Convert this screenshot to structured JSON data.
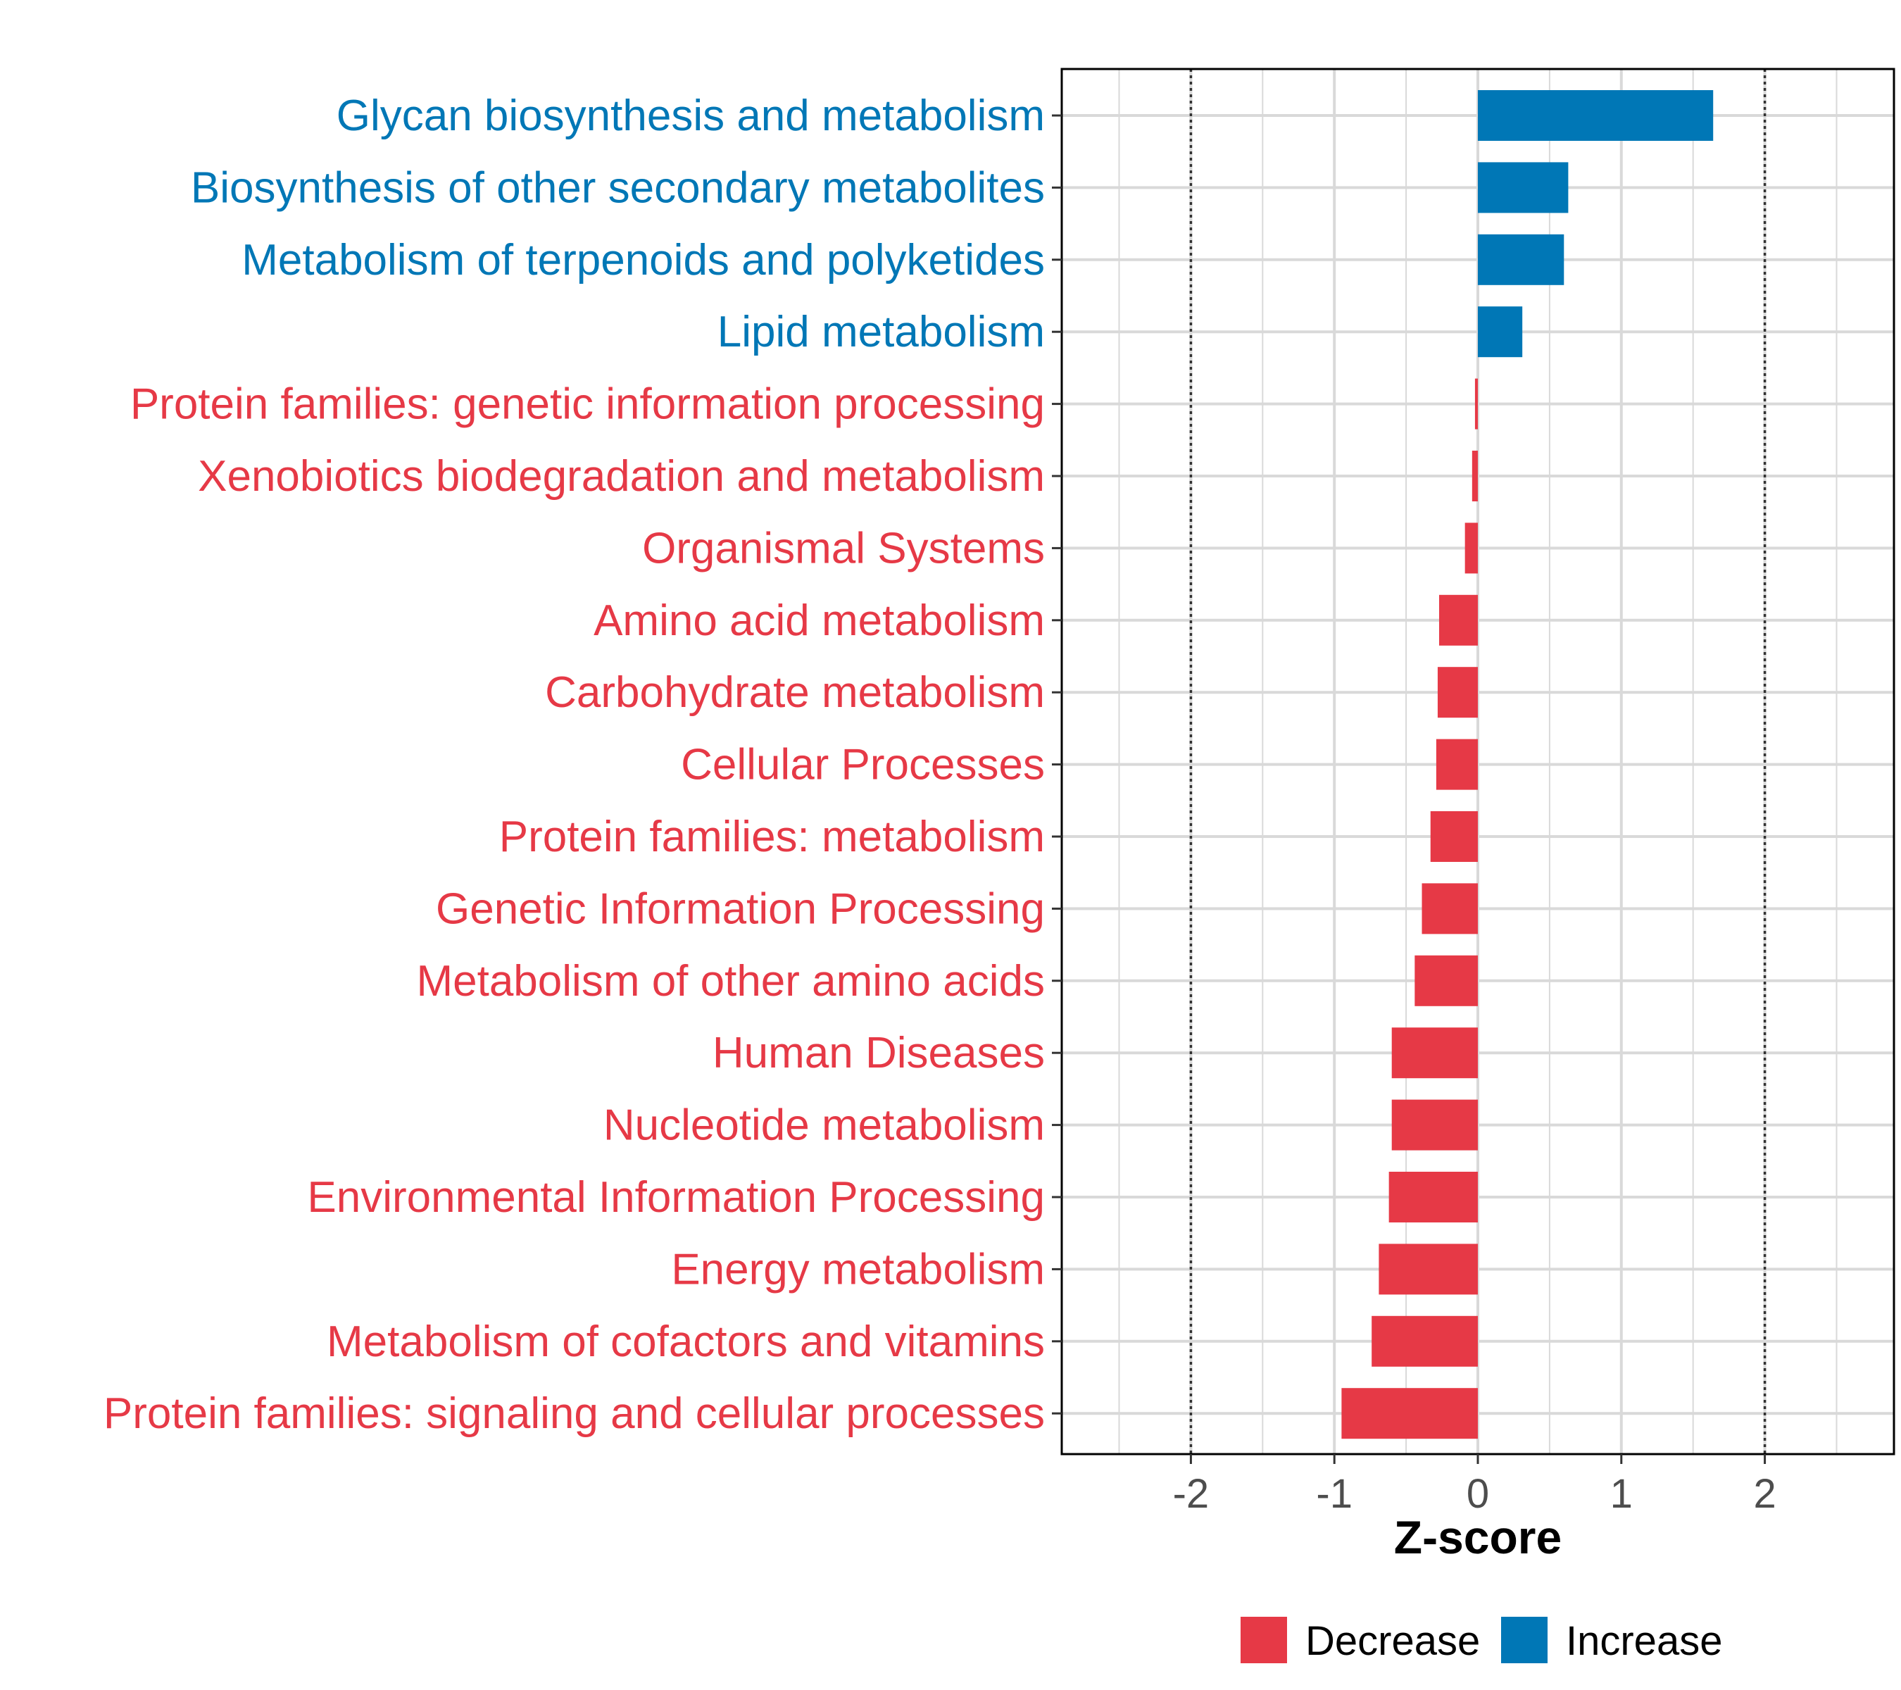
{
  "chart_data": {
    "type": "bar",
    "orientation": "horizontal",
    "title": "",
    "xlabel": "Z-score",
    "ylabel": "",
    "xlim": [
      -2.9,
      2.9
    ],
    "xticks": [
      -2,
      -1,
      0,
      1,
      2
    ],
    "reference_lines": [
      -2,
      2
    ],
    "grid": true,
    "legend_position": "bottom",
    "colors": {
      "Decrease": "#e63946",
      "Increase": "#0077b6"
    },
    "legend": [
      {
        "label": "Decrease",
        "color": "#e63946"
      },
      {
        "label": "Increase",
        "color": "#0077b6"
      }
    ],
    "categories": [
      "Glycan biosynthesis and metabolism",
      "Biosynthesis of other secondary metabolites",
      "Metabolism of terpenoids and polyketides",
      "Lipid metabolism",
      "Protein families: genetic information processing",
      "Xenobiotics biodegradation and metabolism",
      "Organismal Systems",
      "Amino acid metabolism",
      "Carbohydrate metabolism",
      "Cellular Processes",
      "Protein families: metabolism",
      "Genetic Information Processing",
      "Metabolism of other amino acids",
      "Human Diseases",
      "Nucleotide metabolism",
      "Environmental Information Processing",
      "Energy metabolism",
      "Metabolism of cofactors and vitamins",
      "Protein families: signaling and cellular processes"
    ],
    "values": [
      1.64,
      0.63,
      0.6,
      0.31,
      -0.02,
      -0.04,
      -0.09,
      -0.27,
      -0.28,
      -0.29,
      -0.33,
      -0.39,
      -0.44,
      -0.6,
      -0.6,
      -0.62,
      -0.69,
      -0.74,
      -0.95
    ],
    "groups": [
      "Increase",
      "Increase",
      "Increase",
      "Increase",
      "Decrease",
      "Decrease",
      "Decrease",
      "Decrease",
      "Decrease",
      "Decrease",
      "Decrease",
      "Decrease",
      "Decrease",
      "Decrease",
      "Decrease",
      "Decrease",
      "Decrease",
      "Decrease",
      "Decrease"
    ]
  }
}
